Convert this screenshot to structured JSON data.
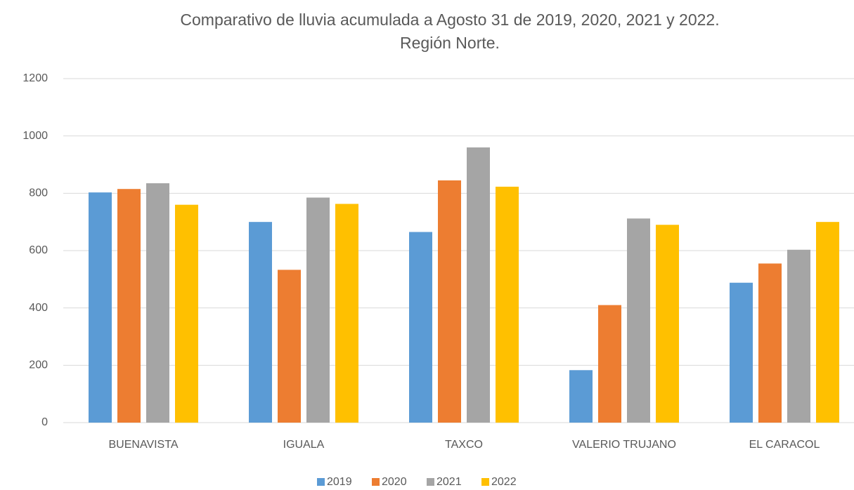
{
  "chart_data": {
    "type": "bar",
    "title": [
      "Comparativo de lluvia acumulada a Agosto 31 de 2019, 2020, 2021 y 2022.",
      "Región Norte."
    ],
    "categories": [
      "BUENAVISTA",
      "IGUALA",
      "TAXCO",
      "VALERIO TRUJANO",
      "EL CARACOL"
    ],
    "series": [
      {
        "name": "2019",
        "color": "#5b9bd5",
        "values": [
          803,
          700,
          665,
          183,
          488
        ]
      },
      {
        "name": "2020",
        "color": "#ed7d31",
        "values": [
          815,
          533,
          845,
          410,
          555
        ]
      },
      {
        "name": "2021",
        "color": "#a5a5a5",
        "values": [
          835,
          785,
          960,
          712,
          603
        ]
      },
      {
        "name": "2022",
        "color": "#ffc000",
        "values": [
          760,
          763,
          823,
          690,
          700
        ]
      }
    ],
    "ylim": [
      0,
      1200
    ],
    "yticks": [
      0,
      200,
      400,
      600,
      800,
      1000,
      1200
    ],
    "grid": true,
    "legend": "bottom"
  }
}
